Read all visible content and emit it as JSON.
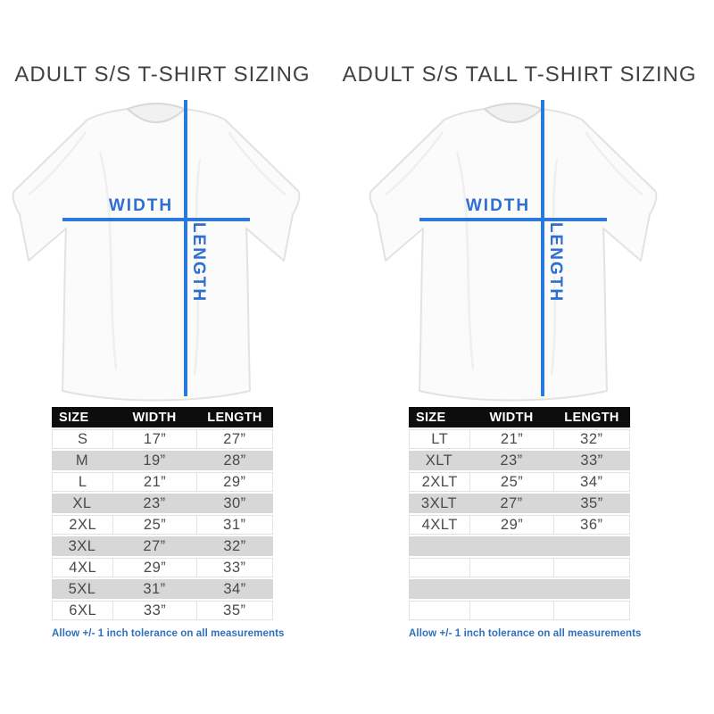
{
  "colors": {
    "line_blue": "#2b79dd",
    "label_blue": "#2e6ed0",
    "footnote_blue": "#2f6fc0",
    "table_header_bg": "#0d0d0d",
    "stripe_gray": "#d7d7d7"
  },
  "panels": [
    {
      "title": "ADULT S/S T-SHIRT SIZING",
      "diagram": {
        "width_label": "WIDTH",
        "length_label": "LENGTH"
      },
      "table": {
        "headers": [
          "SIZE",
          "WIDTH",
          "LENGTH"
        ],
        "rows": [
          [
            "S",
            "17”",
            "27”"
          ],
          [
            "M",
            "19”",
            "28”"
          ],
          [
            "L",
            "21”",
            "29”"
          ],
          [
            "XL",
            "23”",
            "30”"
          ],
          [
            "2XL",
            "25”",
            "31”"
          ],
          [
            "3XL",
            "27”",
            "32”"
          ],
          [
            "4XL",
            "29”",
            "33”"
          ],
          [
            "5XL",
            "31”",
            "34”"
          ],
          [
            "6XL",
            "33”",
            "35”"
          ]
        ],
        "empty_rows": 0
      },
      "footnote": "Allow +/- 1 inch tolerance on all measurements"
    },
    {
      "title": "ADULT S/S TALL T-SHIRT SIZING",
      "diagram": {
        "width_label": "WIDTH",
        "length_label": "LENGTH"
      },
      "table": {
        "headers": [
          "SIZE",
          "WIDTH",
          "LENGTH"
        ],
        "rows": [
          [
            "LT",
            "21”",
            "32”"
          ],
          [
            "XLT",
            "23”",
            "33”"
          ],
          [
            "2XLT",
            "25”",
            "34”"
          ],
          [
            "3XLT",
            "27”",
            "35”"
          ],
          [
            "4XLT",
            "29”",
            "36”"
          ]
        ],
        "empty_rows": 4
      },
      "footnote": "Allow +/- 1 inch tolerance on all measurements"
    }
  ],
  "chart_data": [
    {
      "type": "table",
      "title": "ADULT S/S T-SHIRT SIZING",
      "columns": [
        "SIZE",
        "WIDTH",
        "LENGTH"
      ],
      "rows": [
        [
          "S",
          "17”",
          "27”"
        ],
        [
          "M",
          "19”",
          "28”"
        ],
        [
          "L",
          "21”",
          "29”"
        ],
        [
          "XL",
          "23”",
          "30”"
        ],
        [
          "2XL",
          "25”",
          "31”"
        ],
        [
          "3XL",
          "27”",
          "32”"
        ],
        [
          "4XL",
          "29”",
          "33”"
        ],
        [
          "5XL",
          "31”",
          "34”"
        ],
        [
          "6XL",
          "33”",
          "35”"
        ]
      ],
      "note": "Allow +/- 1 inch tolerance on all measurements"
    },
    {
      "type": "table",
      "title": "ADULT S/S TALL T-SHIRT SIZING",
      "columns": [
        "SIZE",
        "WIDTH",
        "LENGTH"
      ],
      "rows": [
        [
          "LT",
          "21”",
          "32”"
        ],
        [
          "XLT",
          "23”",
          "33”"
        ],
        [
          "2XLT",
          "25”",
          "34”"
        ],
        [
          "3XLT",
          "27”",
          "35”"
        ],
        [
          "4XLT",
          "29”",
          "36”"
        ]
      ],
      "note": "Allow +/- 1 inch tolerance on all measurements"
    }
  ]
}
